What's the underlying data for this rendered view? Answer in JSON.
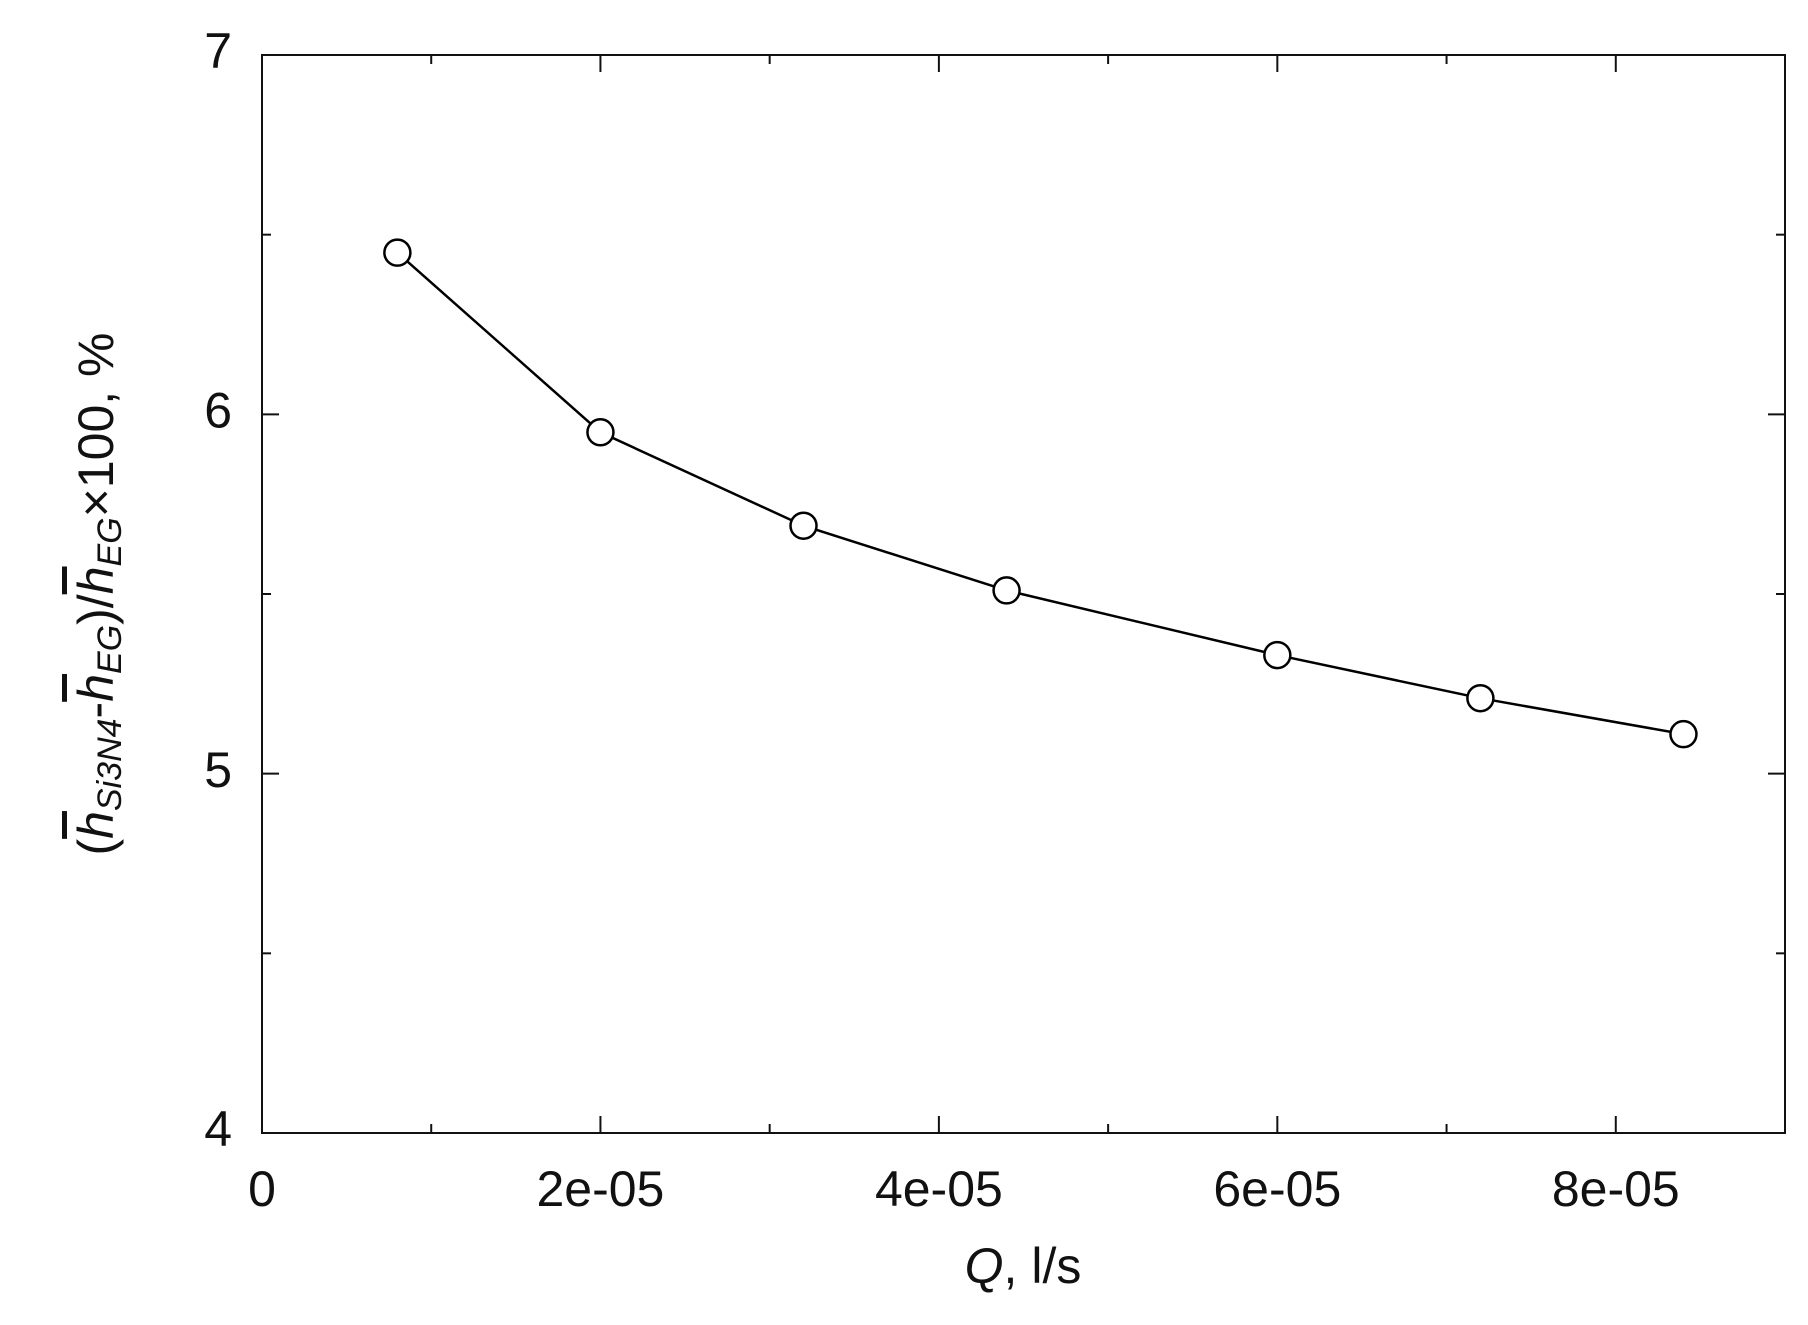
{
  "chart_data": {
    "type": "line",
    "x_label_parts": [
      {
        "text": "Q",
        "kind": "var"
      },
      {
        "text": ", l/s",
        "kind": "plain"
      }
    ],
    "y_label_parts": [
      {
        "text": "(",
        "kind": "plain"
      },
      {
        "text": "h",
        "kind": "var-bar"
      },
      {
        "text": "Si3N4",
        "kind": "sub"
      },
      {
        "text": "-",
        "kind": "plain"
      },
      {
        "text": "h",
        "kind": "var-bar"
      },
      {
        "text": "EG",
        "kind": "sub"
      },
      {
        "text": ")/",
        "kind": "plain"
      },
      {
        "text": "h",
        "kind": "var-bar"
      },
      {
        "text": "EG",
        "kind": "sub"
      },
      {
        "text": "×100, %",
        "kind": "plain"
      }
    ],
    "x": [
      8e-06,
      2e-05,
      3.2e-05,
      4.4e-05,
      6e-05,
      7.2e-05,
      8.4e-05
    ],
    "values": [
      6.45,
      5.95,
      5.69,
      5.51,
      5.33,
      5.21,
      5.11
    ],
    "color": "#000000",
    "marker": "open-circle",
    "xlim": [
      0,
      9e-05
    ],
    "ylim": [
      4,
      7
    ],
    "xticks": [
      0,
      {
        "value": 2e-05,
        "label": "2e-05"
      },
      {
        "value": 4e-05,
        "label": "4e-05"
      },
      {
        "value": 6e-05,
        "label": "6e-05"
      },
      {
        "value": 8e-05,
        "label": "8e-05"
      }
    ],
    "x_minor_ticks": [
      1e-05,
      3e-05,
      5e-05,
      7e-05,
      9e-05
    ],
    "yticks": [
      4,
      5,
      6,
      7
    ],
    "y_minor_ticks": [
      4.5,
      5.5,
      6.5
    ],
    "grid": false
  }
}
